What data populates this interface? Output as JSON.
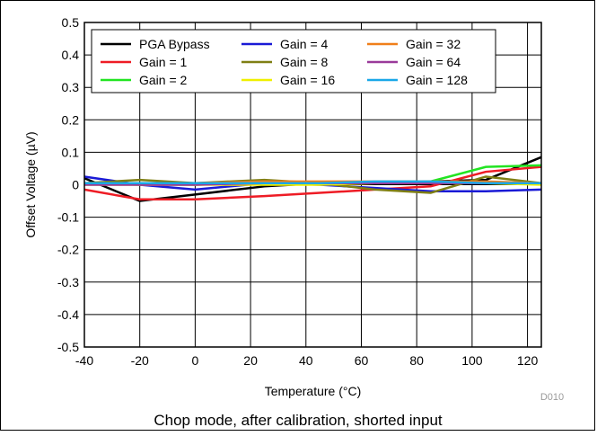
{
  "chart_data": {
    "type": "line",
    "caption": "Chop mode, after calibration, shorted input",
    "xlabel": "Temperature (°C)",
    "ylabel": "Offset Voltage (µV)",
    "figure_code": "D010",
    "xlim": [
      -40,
      125
    ],
    "ylim": [
      -0.5,
      0.5
    ],
    "x_ticks": [
      -40,
      -20,
      0,
      20,
      40,
      60,
      80,
      100,
      120
    ],
    "x_tick_labels": [
      "-40",
      "-20",
      "0",
      "20",
      "40",
      "60",
      "80",
      "100",
      "120"
    ],
    "y_ticks": [
      -0.5,
      -0.4,
      -0.3,
      -0.2,
      -0.1,
      0,
      0.1,
      0.2,
      0.3,
      0.4,
      0.5
    ],
    "y_tick_labels": [
      "-0.5",
      "-0.4",
      "-0.3",
      "-0.2",
      "-0.1",
      "0",
      "0.1",
      "0.2",
      "0.3",
      "0.4",
      "0.5"
    ],
    "grid": true,
    "legend_position": "top",
    "x": [
      -40,
      -20,
      0,
      25,
      45,
      65,
      85,
      105,
      125
    ],
    "series": [
      {
        "name": "PGA Bypass",
        "color": "#000000",
        "values": [
          0.02,
          -0.05,
          -0.03,
          -0.005,
          0.005,
          0.005,
          0.01,
          0.015,
          0.085
        ]
      },
      {
        "name": "Gain = 1",
        "color": "#ee1c25",
        "values": [
          -0.015,
          -0.045,
          -0.045,
          -0.035,
          -0.025,
          -0.015,
          -0.005,
          0.04,
          0.055
        ]
      },
      {
        "name": "Gain = 2",
        "color": "#22e422",
        "values": [
          0.005,
          0.0,
          0.0,
          0.005,
          0.005,
          0.005,
          0.01,
          0.055,
          0.06
        ]
      },
      {
        "name": "Gain = 4",
        "color": "#1a1ad6",
        "values": [
          0.025,
          0.0,
          -0.015,
          0.005,
          0.0,
          -0.01,
          -0.02,
          -0.02,
          -0.015
        ]
      },
      {
        "name": "Gain = 8",
        "color": "#7f7f14",
        "values": [
          0.005,
          0.015,
          0.005,
          0.015,
          0.005,
          -0.015,
          -0.025,
          0.025,
          0.005
        ]
      },
      {
        "name": "Gain = 16",
        "color": "#f0f000",
        "values": [
          0.0,
          0.0,
          0.0,
          0.0,
          0.0,
          0.005,
          0.005,
          0.005,
          0.0
        ]
      },
      {
        "name": "Gain = 32",
        "color": "#f07f1a",
        "values": [
          0.005,
          0.005,
          0.005,
          0.01,
          0.01,
          0.01,
          0.01,
          0.01,
          0.005
        ]
      },
      {
        "name": "Gain = 64",
        "color": "#9a3a9a",
        "values": [
          0.0,
          0.0,
          0.0,
          0.005,
          0.005,
          0.005,
          0.005,
          0.005,
          0.005
        ]
      },
      {
        "name": "Gain = 128",
        "color": "#1aa8e8",
        "values": [
          0.005,
          0.005,
          0.005,
          0.005,
          0.005,
          0.01,
          0.01,
          0.005,
          0.005
        ]
      }
    ]
  }
}
